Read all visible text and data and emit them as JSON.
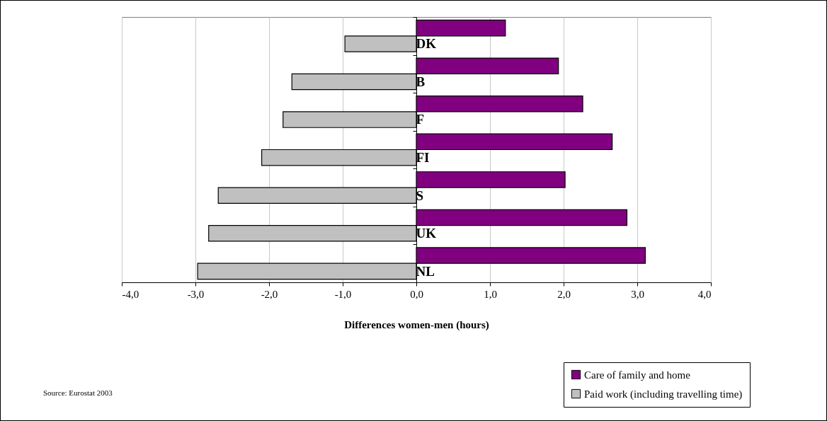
{
  "chart_data": {
    "type": "bar",
    "orientation": "horizontal",
    "xlabel": "Differences women-men  (hours)",
    "categories": [
      "DK",
      "B",
      "F",
      "FI",
      "S",
      "UK",
      "NL"
    ],
    "series": [
      {
        "name": "Care of family and home",
        "color": "#800080",
        "values": [
          1.21,
          1.93,
          2.26,
          2.66,
          2.02,
          2.86,
          3.11
        ]
      },
      {
        "name": "Paid work (including travelling time)",
        "color": "#c0c0c0",
        "values": [
          -0.97,
          -1.69,
          -1.81,
          -2.1,
          -2.69,
          -2.82,
          -2.97
        ]
      }
    ],
    "xlim": [
      -4,
      4
    ],
    "xticks": [
      {
        "value": -4,
        "label": "-4,0"
      },
      {
        "value": -3,
        "label": "-3,0"
      },
      {
        "value": -2,
        "label": "-2,0"
      },
      {
        "value": -1,
        "label": "-1,0"
      },
      {
        "value": 0,
        "label": "0,0"
      },
      {
        "value": 1,
        "label": "1,0"
      },
      {
        "value": 2,
        "label": "2,0"
      },
      {
        "value": 3,
        "label": "3,0"
      },
      {
        "value": 4,
        "label": "4,0"
      }
    ],
    "grid": "x",
    "legend": "bottom right",
    "annotations": [
      "Source: Eurostat  2003"
    ]
  }
}
